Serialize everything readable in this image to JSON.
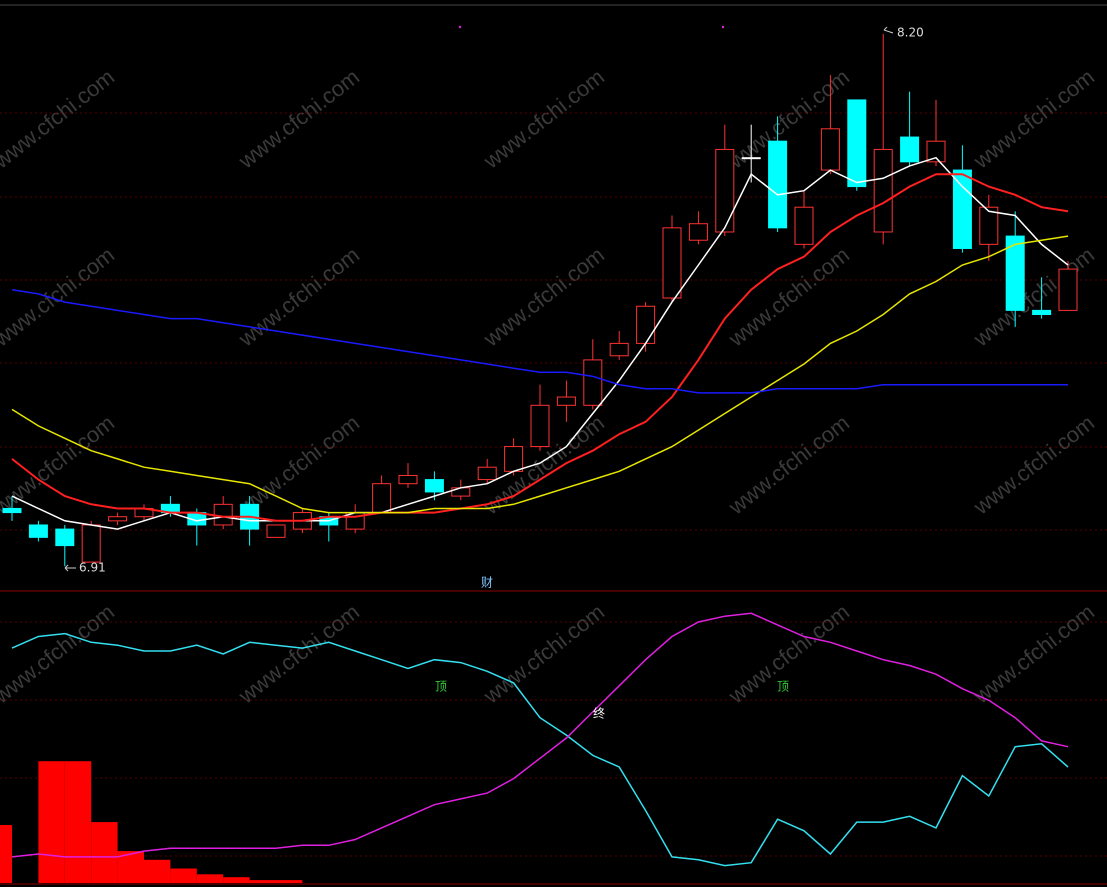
{
  "watermark": "www.cfchi.com",
  "chart_data": [
    {
      "type": "candlestick",
      "ylim": [
        6.85,
        8.27
      ],
      "up_color": "#ff3232",
      "down_color": "#00ffff",
      "doji_color": "#ffffff",
      "open": [
        7.05,
        7.01,
        7.0,
        6.92,
        7.02,
        7.03,
        7.06,
        7.04,
        7.01,
        7.06,
        6.98,
        7.0,
        7.03,
        7.0,
        7.04,
        7.11,
        7.12,
        7.08,
        7.12,
        7.14,
        7.2,
        7.3,
        7.3,
        7.42,
        7.45,
        7.56,
        7.7,
        7.72,
        7.9,
        7.94,
        7.69,
        7.87,
        8.04,
        7.72,
        7.95,
        7.89,
        7.87,
        7.69,
        7.71,
        7.53,
        7.53
      ],
      "high": [
        7.08,
        7.02,
        7.01,
        7.02,
        7.04,
        7.06,
        7.08,
        7.05,
        7.08,
        7.08,
        7.01,
        7.05,
        7.04,
        7.06,
        7.13,
        7.16,
        7.14,
        7.12,
        7.17,
        7.22,
        7.35,
        7.36,
        7.46,
        7.48,
        7.55,
        7.76,
        7.77,
        7.98,
        7.98,
        8.0,
        7.82,
        8.1,
        8.04,
        8.2,
        8.06,
        8.04,
        7.93,
        7.81,
        7.77,
        7.61,
        7.65
      ],
      "low": [
        7.02,
        6.97,
        6.91,
        6.92,
        7.01,
        7.02,
        7.03,
        6.96,
        7.0,
        6.96,
        6.98,
        6.99,
        6.97,
        6.99,
        7.04,
        7.1,
        7.07,
        7.07,
        7.11,
        7.13,
        7.19,
        7.26,
        7.29,
        7.41,
        7.43,
        7.55,
        7.69,
        7.71,
        7.84,
        7.72,
        7.68,
        7.86,
        7.82,
        7.69,
        7.88,
        7.88,
        7.67,
        7.65,
        7.49,
        7.51,
        7.53
      ],
      "close": [
        7.04,
        6.98,
        6.96,
        7.01,
        7.03,
        7.05,
        7.04,
        7.01,
        7.06,
        7.0,
        7.01,
        7.04,
        7.01,
        7.04,
        7.11,
        7.13,
        7.09,
        7.1,
        7.15,
        7.2,
        7.3,
        7.32,
        7.41,
        7.45,
        7.54,
        7.73,
        7.74,
        7.92,
        7.9,
        7.73,
        7.78,
        7.97,
        7.83,
        7.92,
        7.89,
        7.94,
        7.68,
        7.78,
        7.53,
        7.52,
        7.63
      ],
      "series": [
        {
          "color": "#ffffff",
          "values": [
            7.08,
            7.05,
            7.02,
            7.01,
            7.0,
            7.02,
            7.04,
            7.02,
            7.03,
            7.02,
            7.02,
            7.02,
            7.02,
            7.04,
            7.04,
            7.06,
            7.08,
            7.1,
            7.11,
            7.14,
            7.16,
            7.2,
            7.28,
            7.36,
            7.45,
            7.55,
            7.64,
            7.73,
            7.86,
            7.81,
            7.82,
            7.87,
            7.84,
            7.85,
            7.88,
            7.9,
            7.83,
            7.77,
            7.76,
            7.69,
            7.64
          ]
        },
        {
          "color": "#ff2020",
          "values": [
            7.17,
            7.12,
            7.08,
            7.06,
            7.05,
            7.05,
            7.04,
            7.04,
            7.03,
            7.03,
            7.02,
            7.02,
            7.03,
            7.03,
            7.04,
            7.04,
            7.04,
            7.05,
            7.06,
            7.08,
            7.12,
            7.16,
            7.19,
            7.23,
            7.26,
            7.32,
            7.41,
            7.51,
            7.58,
            7.63,
            7.66,
            7.72,
            7.76,
            7.79,
            7.83,
            7.86,
            7.86,
            7.83,
            7.81,
            7.78,
            7.77
          ]
        },
        {
          "color": "#e6e600",
          "values": [
            7.29,
            7.25,
            7.22,
            7.19,
            7.17,
            7.15,
            7.14,
            7.13,
            7.12,
            7.11,
            7.08,
            7.05,
            7.04,
            7.04,
            7.04,
            7.04,
            7.05,
            7.05,
            7.05,
            7.06,
            7.08,
            7.1,
            7.12,
            7.14,
            7.17,
            7.2,
            7.24,
            7.28,
            7.32,
            7.36,
            7.4,
            7.45,
            7.48,
            7.52,
            7.57,
            7.6,
            7.64,
            7.66,
            7.69,
            7.7,
            7.71
          ]
        },
        {
          "color": "#1a1aff",
          "values": [
            7.58,
            7.57,
            7.55,
            7.54,
            7.53,
            7.52,
            7.51,
            7.51,
            7.5,
            7.49,
            7.48,
            7.47,
            7.46,
            7.45,
            7.44,
            7.43,
            7.42,
            7.41,
            7.4,
            7.39,
            7.38,
            7.38,
            7.37,
            7.35,
            7.34,
            7.34,
            7.33,
            7.33,
            7.33,
            7.34,
            7.34,
            7.34,
            7.34,
            7.35,
            7.35,
            7.35,
            7.35,
            7.35,
            7.35,
            7.35,
            7.35
          ]
        }
      ],
      "high_label": "8.20",
      "low_label": "6.91",
      "annotation": "财"
    },
    {
      "type": "line",
      "ylim": [
        0,
        100
      ],
      "series": [
        {
          "color": "#33e0f0",
          "values": [
            81,
            85,
            86,
            83,
            82,
            80,
            80,
            82,
            79,
            83,
            82,
            81,
            83,
            80,
            77,
            74,
            77,
            76,
            73,
            69,
            57,
            51,
            44,
            40,
            25,
            9,
            8,
            6,
            7,
            22,
            18,
            10,
            21,
            21,
            23,
            19,
            37,
            30,
            47,
            48,
            40
          ]
        },
        {
          "color": "#e020e0",
          "values": [
            9,
            10,
            9,
            9,
            9,
            11,
            12,
            12,
            12,
            12,
            12,
            13,
            13,
            15,
            19,
            23,
            27,
            29,
            31,
            36,
            43,
            50,
            59,
            68,
            77,
            85,
            90,
            92,
            93,
            89,
            85,
            83,
            80,
            77,
            75,
            72,
            67,
            63,
            57,
            49,
            47
          ]
        }
      ],
      "bars": {
        "color": "#ff0000",
        "values": [
          20,
          null,
          42,
          42,
          21,
          11,
          8,
          5,
          3,
          2,
          1,
          1,
          null,
          null,
          null,
          null,
          null,
          null,
          null,
          null,
          null,
          null,
          null,
          null,
          null,
          null,
          null,
          null,
          null,
          null,
          null,
          null,
          null,
          null,
          null,
          null,
          null,
          null,
          null,
          null,
          null
        ]
      },
      "annotations": [
        "顶",
        "终",
        "顶"
      ]
    }
  ]
}
